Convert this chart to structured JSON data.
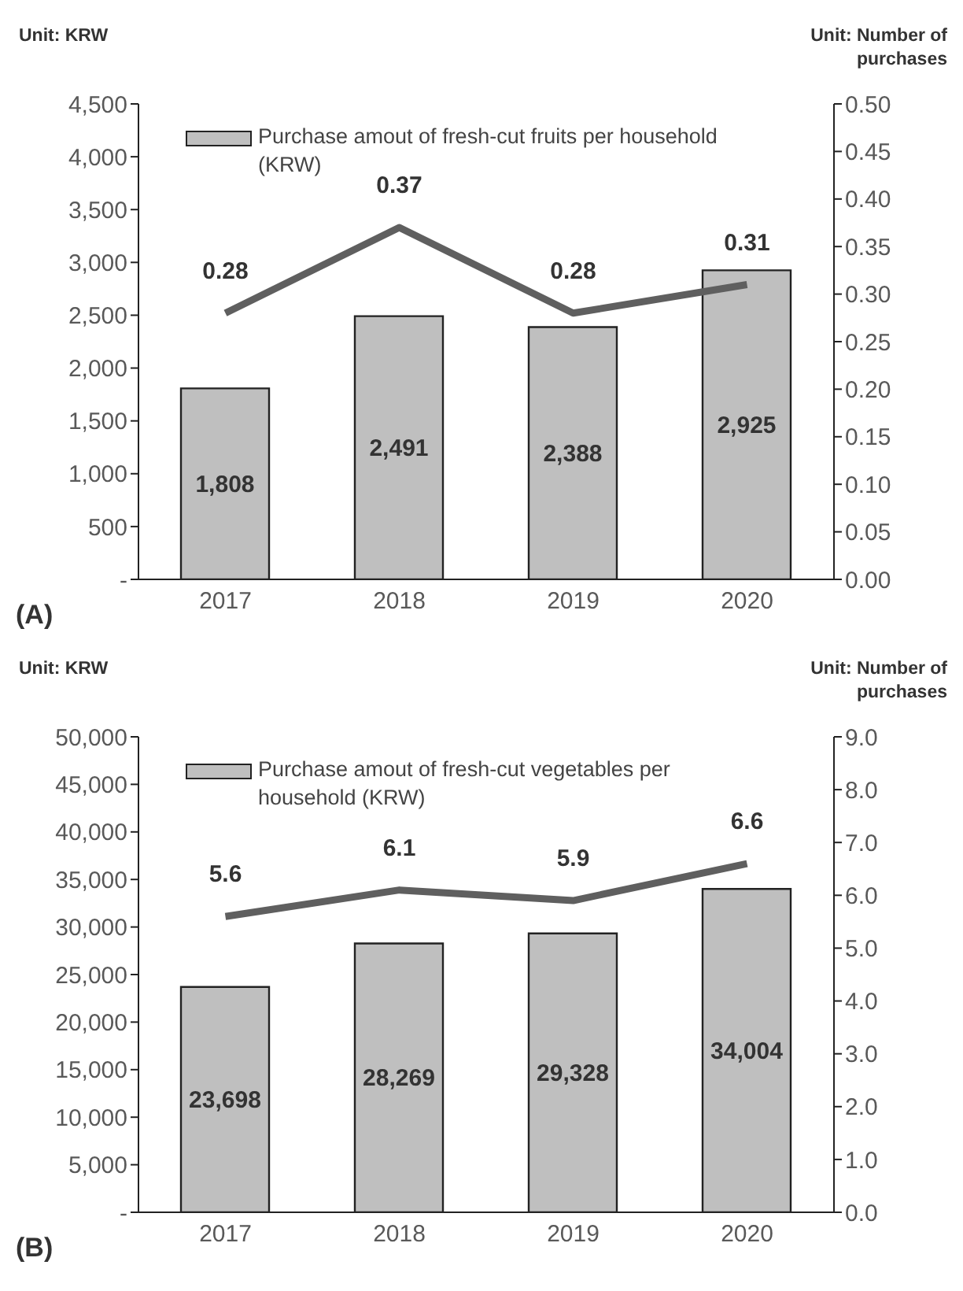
{
  "chart_data": [
    {
      "type": "bar",
      "categories": [
        "2017",
        "2018",
        "2019",
        "2020"
      ],
      "series": [
        {
          "name": "Purchase amout of fresh-cut fruits per household (KRW)",
          "color": "#bfbfbf",
          "values": [
            1808,
            2491,
            2388,
            2925
          ],
          "value_labels": [
            "1,808",
            "2,491",
            "2,388",
            "2,925"
          ]
        },
        {
          "type": "line",
          "axis": "y2",
          "color": "#5f5f5f",
          "values": [
            0.28,
            0.37,
            0.28,
            0.31
          ],
          "value_labels": [
            "0.28",
            "0.37",
            "0.28",
            "0.31"
          ]
        }
      ],
      "ylim": [
        0,
        4500
      ],
      "yticks": [
        {
          "value": 0,
          "label": "-"
        },
        {
          "value": 500,
          "label": "500"
        },
        {
          "value": 1000,
          "label": "1,000"
        },
        {
          "value": 1500,
          "label": "1,500"
        },
        {
          "value": 2000,
          "label": "2,000"
        },
        {
          "value": 2500,
          "label": "2,500"
        },
        {
          "value": 3000,
          "label": "3,000"
        },
        {
          "value": 3500,
          "label": "3,500"
        },
        {
          "value": 4000,
          "label": "4,000"
        },
        {
          "value": 4500,
          "label": "4,500"
        }
      ],
      "y2lim": [
        0,
        0.5
      ],
      "y2ticks": [
        {
          "value": 0,
          "label": "0.00"
        },
        {
          "value": 0.05,
          "label": "0.05"
        },
        {
          "value": 0.1,
          "label": "0.10"
        },
        {
          "value": 0.15,
          "label": "0.15"
        },
        {
          "value": 0.2,
          "label": "0.20"
        },
        {
          "value": 0.25,
          "label": "0.25"
        },
        {
          "value": 0.3,
          "label": "0.30"
        },
        {
          "value": 0.35,
          "label": "0.35"
        },
        {
          "value": 0.4,
          "label": "0.40"
        },
        {
          "value": 0.45,
          "label": "0.45"
        },
        {
          "value": 0.5,
          "label": "0.50"
        }
      ],
      "grid": false,
      "legend": "top left",
      "marker": "none",
      "annotations": [
        "Unit: KRW",
        "Unit: Number of purchases",
        "(A)"
      ]
    },
    {
      "type": "bar",
      "categories": [
        "2017",
        "2018",
        "2019",
        "2020"
      ],
      "series": [
        {
          "name": "Purchase amout of fresh-cut vegetables per household (KRW)",
          "color": "#bfbfbf",
          "values": [
            23698,
            28269,
            29328,
            34004
          ],
          "value_labels": [
            "23,698",
            "28,269",
            "29,328",
            "34,004"
          ]
        },
        {
          "type": "line",
          "axis": "y2",
          "color": "#5f5f5f",
          "values": [
            5.6,
            6.1,
            5.9,
            6.6
          ],
          "value_labels": [
            "5.6",
            "6.1",
            "5.9",
            "6.6"
          ]
        }
      ],
      "ylim": [
        0,
        50000
      ],
      "yticks": [
        {
          "value": 0,
          "label": "-"
        },
        {
          "value": 5000,
          "label": "5,000"
        },
        {
          "value": 10000,
          "label": "10,000"
        },
        {
          "value": 15000,
          "label": "15,000"
        },
        {
          "value": 20000,
          "label": "20,000"
        },
        {
          "value": 25000,
          "label": "25,000"
        },
        {
          "value": 30000,
          "label": "30,000"
        },
        {
          "value": 35000,
          "label": "35,000"
        },
        {
          "value": 40000,
          "label": "40,000"
        },
        {
          "value": 45000,
          "label": "45,000"
        },
        {
          "value": 50000,
          "label": "50,000"
        }
      ],
      "y2lim": [
        0,
        9
      ],
      "y2ticks": [
        {
          "value": 0,
          "label": "0.0"
        },
        {
          "value": 1,
          "label": "1.0"
        },
        {
          "value": 2,
          "label": "2.0"
        },
        {
          "value": 3,
          "label": "3.0"
        },
        {
          "value": 4,
          "label": "4.0"
        },
        {
          "value": 5,
          "label": "5.0"
        },
        {
          "value": 6,
          "label": "6.0"
        },
        {
          "value": 7,
          "label": "7.0"
        },
        {
          "value": 8,
          "label": "8.0"
        },
        {
          "value": 9,
          "label": "9.0"
        }
      ],
      "grid": false,
      "legend": "top left",
      "marker": "none",
      "annotations": [
        "Unit: KRW",
        "Unit: Number of purchases",
        "(B)"
      ]
    }
  ]
}
